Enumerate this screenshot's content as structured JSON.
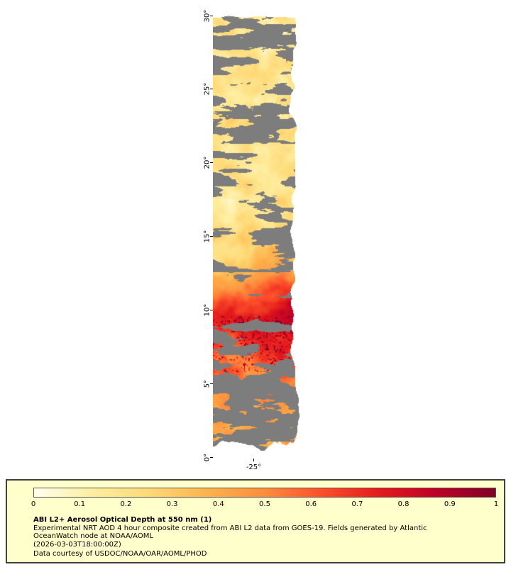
{
  "map": {
    "lat_axis": {
      "min": 0,
      "max": 30,
      "ticks": [
        {
          "label": "30°",
          "value": 30
        },
        {
          "label": "25°",
          "value": 25
        },
        {
          "label": "20°",
          "value": 20
        },
        {
          "label": "15°",
          "value": 15
        },
        {
          "label": "10°",
          "value": 10
        },
        {
          "label": "5°",
          "value": 5
        },
        {
          "label": "0°",
          "value": 0
        }
      ]
    },
    "lon_axis": {
      "ticks": [
        {
          "label": "-25°",
          "value": -25
        }
      ]
    },
    "nodata_color": "#7d7d7d"
  },
  "colorbar": {
    "min": 0,
    "max": 1,
    "ticks": [
      "0",
      "0.1",
      "0.2",
      "0.3",
      "0.4",
      "0.5",
      "0.6",
      "0.7",
      "0.8",
      "0.9",
      "1"
    ],
    "stops": [
      {
        "t": 0,
        "c": "#ffffef"
      },
      {
        "t": 0.125,
        "c": "#ffeda0"
      },
      {
        "t": 0.25,
        "c": "#fed976"
      },
      {
        "t": 0.375,
        "c": "#feb24c"
      },
      {
        "t": 0.5,
        "c": "#fd8d3c"
      },
      {
        "t": 0.625,
        "c": "#fc4e2a"
      },
      {
        "t": 0.75,
        "c": "#e31a1c"
      },
      {
        "t": 0.875,
        "c": "#bd0026"
      },
      {
        "t": 1,
        "c": "#800026"
      }
    ]
  },
  "legend": {
    "background": "#ffffcc",
    "title": "ABI L2+ Aerosol Optical Depth at 550 nm (1)",
    "description_line1": "Experimental NRT AOD 4 hour composite created from ABI L2 data from GOES-19. Fields generated by Atlantic",
    "description_line2": "OceanWatch node at NOAA/AOML",
    "timestamp": "(2026-03-03T18:00:00Z)",
    "credit": "Data courtesy of USDOC/NOAA/OAR/AOML/PHOD"
  },
  "chart_data": {
    "type": "heatmap",
    "title": "ABI L2+ Aerosol Optical Depth at 550 nm (1)",
    "x_axis": {
      "tick_labels": [
        "-25°"
      ]
    },
    "y_axis": {
      "tick_labels": [
        "0°",
        "5°",
        "10°",
        "15°",
        "20°",
        "25°",
        "30°"
      ],
      "range_deg": [
        0,
        30
      ]
    },
    "colorbar": {
      "range": [
        0,
        1
      ],
      "tick_labels": [
        "0",
        "0.1",
        "0.2",
        "0.3",
        "0.4",
        "0.5",
        "0.6",
        "0.7",
        "0.8",
        "0.9",
        "1"
      ]
    },
    "nodata_meaning": "gray = no retrieval (cloud / no data)",
    "regions": [
      {
        "lat_range": [
          13,
          30
        ],
        "aod_typical": [
          0.1,
          0.3
        ],
        "note": "pale-yellow low AOD with horizontally streaked gray no-data gaps"
      },
      {
        "lat_range": [
          5,
          13
        ],
        "aod_typical": [
          0.4,
          1.0
        ],
        "note": "strong orange-red aerosol plume, darkest red AOD ~0.8-1.0 near 7°-11°, speckled dark-red/gray zone near 6°-9°"
      },
      {
        "lat_range": [
          0,
          5
        ],
        "aod_typical": [
          0.3,
          0.7
        ],
        "note": "patchy orange AOD with extensive gray no-data, ragged gray southern edge"
      }
    ]
  }
}
